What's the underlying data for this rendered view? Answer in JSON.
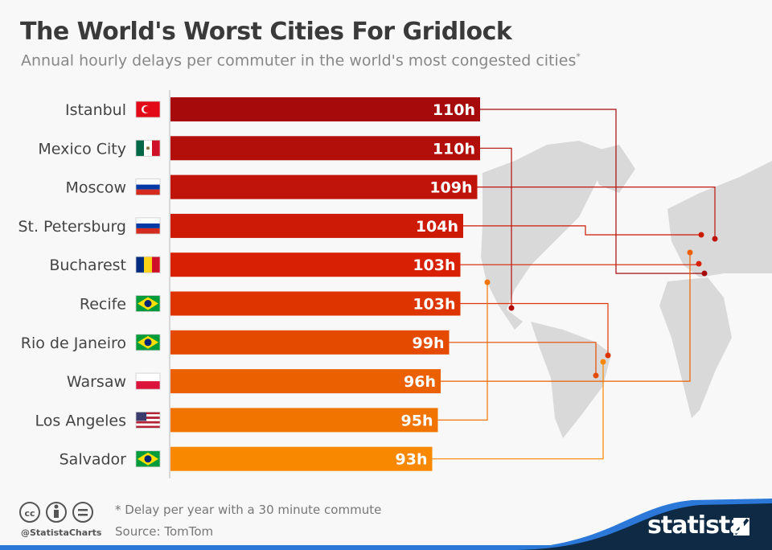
{
  "chart_data": {
    "type": "bar",
    "orientation": "horizontal",
    "title": "The World's Worst Cities For Gridlock",
    "subtitle": "Annual hourly delays per commuter in the world's most congested cities",
    "subtitle_mark": "*",
    "categories": [
      "Istanbul",
      "Mexico City",
      "Moscow",
      "St. Petersburg",
      "Bucharest",
      "Recife",
      "Rio de Janeiro",
      "Warsaw",
      "Los Angeles",
      "Salvador"
    ],
    "countries": [
      "Turkey",
      "Mexico",
      "Russia",
      "Russia",
      "Romania",
      "Brazil",
      "Brazil",
      "Poland",
      "USA",
      "Brazil"
    ],
    "values": [
      110,
      110,
      109,
      104,
      103,
      103,
      99,
      96,
      95,
      93
    ],
    "value_labels": [
      "110h",
      "110h",
      "109h",
      "104h",
      "103h",
      "103h",
      "99h",
      "96h",
      "95h",
      "93h"
    ],
    "unit": "h",
    "colors": [
      "#a60a0b",
      "#b20e0a",
      "#c0140a",
      "#cc1a06",
      "#d82004",
      "#de3400",
      "#e44a00",
      "#eb6000",
      "#f27400",
      "#f78800"
    ],
    "xlim": [
      0,
      110
    ],
    "grid": false,
    "legend": "none"
  },
  "footer": {
    "note": "* Delay per year with a 30 minute commute",
    "source": "Source: TomTom",
    "handle": "@StatistaCharts",
    "brand": "statista",
    "license_icons": [
      "cc-icon",
      "by-icon",
      "nd-icon"
    ]
  }
}
